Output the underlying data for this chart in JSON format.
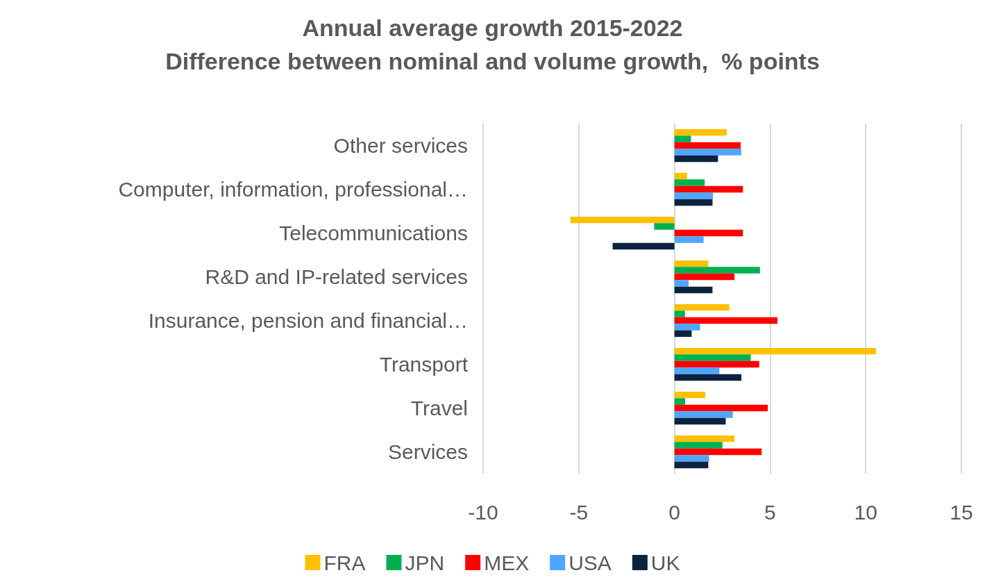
{
  "chart_data": {
    "type": "bar",
    "orientation": "horizontal",
    "title": "Annual average growth 2015-2022",
    "subtitle": "Difference between nominal and volume growth,  % points",
    "categories": [
      "Other services",
      "Computer, information, professional…",
      "Telecommunications",
      "R&D and IP-related services",
      "Insurance, pension and financial…",
      "Transport",
      "Travel",
      "Services"
    ],
    "series": [
      {
        "name": "FRA",
        "color": "#ffc000",
        "values": [
          2.74,
          0.66,
          -5.44,
          1.77,
          2.87,
          10.53,
          1.61,
          3.14
        ]
      },
      {
        "name": "JPN",
        "color": "#00b050",
        "values": [
          0.86,
          1.58,
          -1.06,
          4.47,
          0.55,
          3.99,
          0.56,
          2.51
        ]
      },
      {
        "name": "MEX",
        "color": "#ff0000",
        "values": [
          3.46,
          3.58,
          3.58,
          3.14,
          5.38,
          4.43,
          4.88,
          4.56
        ]
      },
      {
        "name": "USA",
        "color": "#4da6ff",
        "values": [
          3.49,
          2.02,
          1.52,
          0.74,
          1.34,
          2.35,
          3.05,
          1.81
        ]
      },
      {
        "name": "UK",
        "color": "#0c2340",
        "values": [
          2.28,
          1.99,
          -3.23,
          1.99,
          0.9,
          3.5,
          2.68,
          1.77
        ]
      }
    ],
    "xlim": [
      -10,
      15
    ],
    "xticks": [
      -10,
      -5,
      0,
      5,
      10,
      15
    ],
    "grid": "x",
    "legend": "bottom"
  }
}
